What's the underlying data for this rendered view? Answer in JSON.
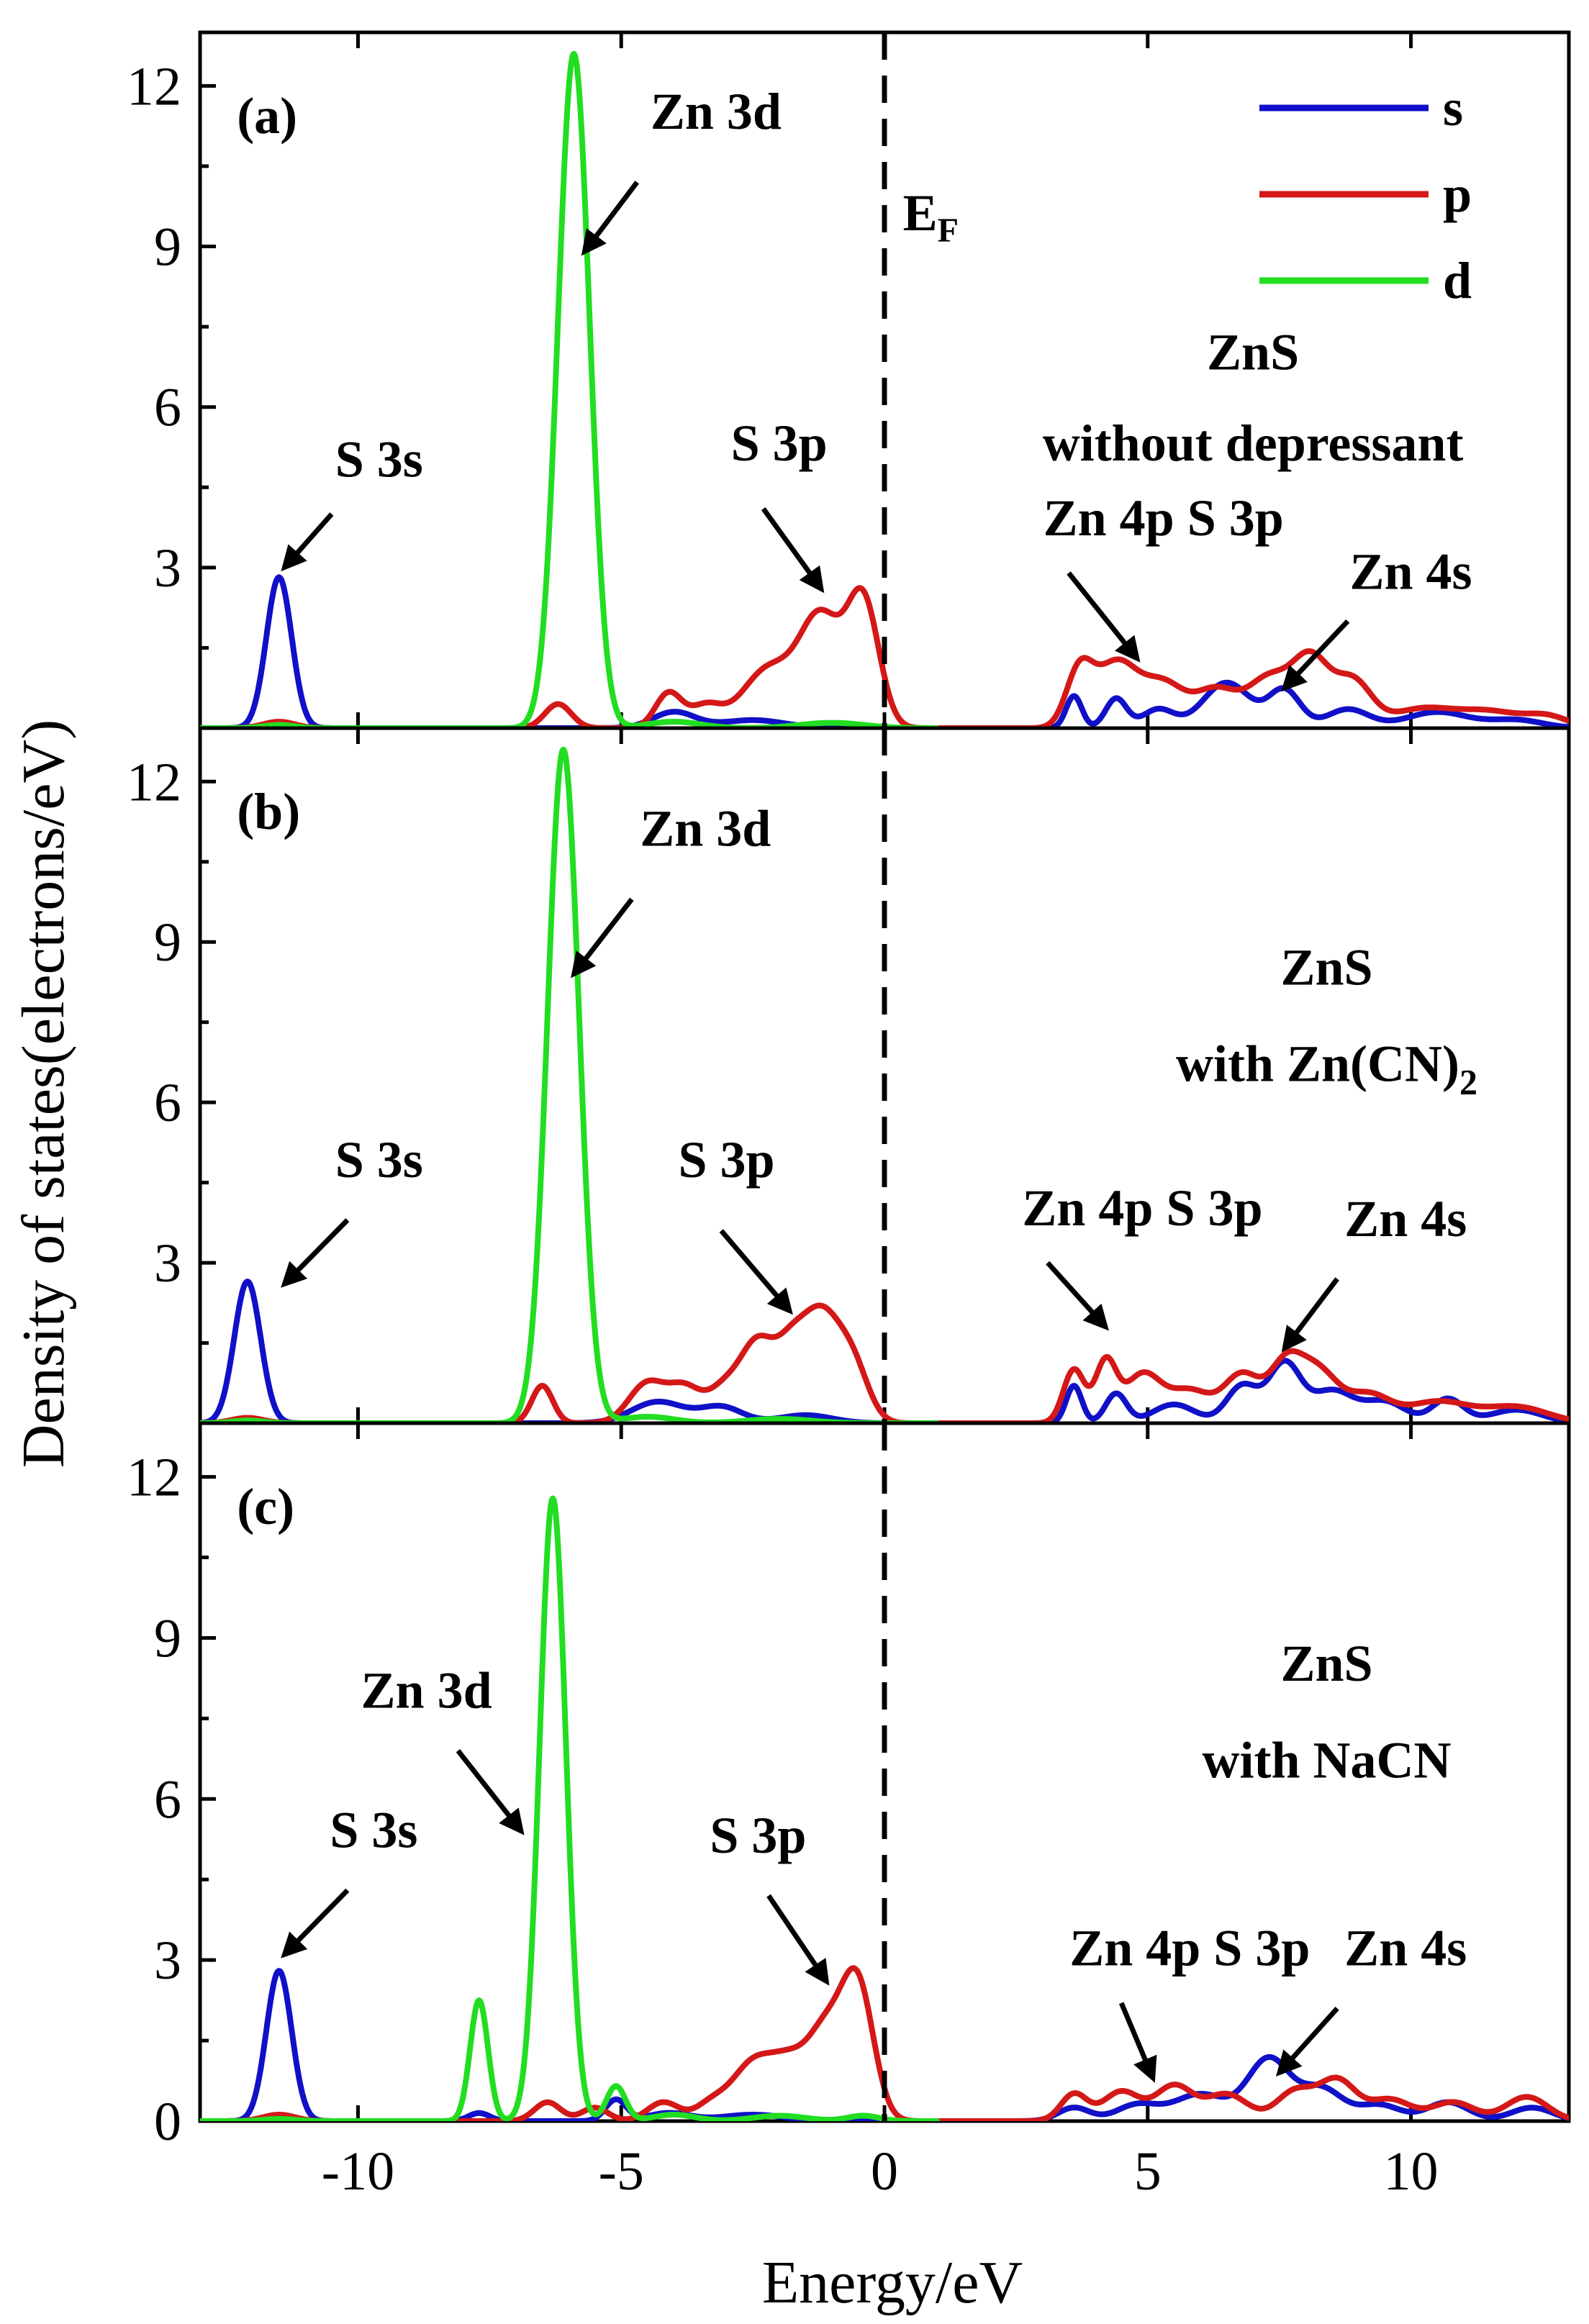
{
  "colors": {
    "s": "#1010c8",
    "p": "#d41818",
    "d": "#22dd22",
    "axis": "#000000"
  },
  "chart_data": {
    "type": "line",
    "xlabel": "Energy/eV",
    "ylabel": "Density of states(electrons/eV)",
    "xlim": [
      -13,
      13
    ],
    "ylim": [
      0,
      13
    ],
    "xticks": [
      -10,
      -5,
      0,
      5,
      10
    ],
    "yticks": [
      0,
      3,
      6,
      9,
      12
    ],
    "fermi_level": {
      "x": 0,
      "label_main": "E",
      "label_sub": "F"
    },
    "legend": [
      {
        "key": "s",
        "label": "s"
      },
      {
        "key": "p",
        "label": "p"
      },
      {
        "key": "d",
        "label": "d"
      }
    ],
    "panels": [
      {
        "id": "a",
        "label": "(a)",
        "title_line1": "ZnS",
        "title_line2": "without depressant",
        "title_line2_sub": "",
        "series": {
          "s": {
            "peaks": [
              [
                -11.5,
                2.82,
                0.24
              ],
              [
                -4.0,
                0.3,
                0.4
              ],
              [
                -2.5,
                0.15,
                0.6
              ],
              [
                3.6,
                0.6,
                0.15
              ],
              [
                4.4,
                0.55,
                0.2
              ],
              [
                5.2,
                0.35,
                0.3
              ],
              [
                6.5,
                0.85,
                0.45
              ],
              [
                7.6,
                0.7,
                0.3
              ],
              [
                8.8,
                0.35,
                0.4
              ],
              [
                10.5,
                0.3,
                0.6
              ],
              [
                12.0,
                0.15,
                0.5
              ]
            ],
            "range": [
              -13,
              13
            ]
          },
          "p": {
            "peaks": [
              [
                -11.5,
                0.12,
                0.3
              ],
              [
                -6.2,
                0.45,
                0.25
              ],
              [
                -4.1,
                0.65,
                0.25
              ],
              [
                -3.4,
                0.4,
                0.3
              ],
              [
                -2.2,
                1.1,
                0.5
              ],
              [
                -1.2,
                2.0,
                0.4
              ],
              [
                -0.4,
                2.3,
                0.3
              ],
              [
                3.7,
                1.0,
                0.25
              ],
              [
                4.4,
                1.2,
                0.4
              ],
              [
                5.3,
                0.8,
                0.4
              ],
              [
                6.3,
                0.7,
                0.4
              ],
              [
                7.3,
                0.9,
                0.4
              ],
              [
                8.1,
                1.25,
                0.35
              ],
              [
                8.9,
                0.85,
                0.35
              ],
              [
                10.2,
                0.35,
                0.6
              ],
              [
                11.5,
                0.3,
                0.6
              ],
              [
                12.6,
                0.2,
                0.4
              ]
            ],
            "range": [
              -13,
              13
            ]
          },
          "d": {
            "peaks": [
              [
                -11.5,
                0.06,
                0.3
              ],
              [
                -5.9,
                12.6,
                0.3
              ],
              [
                -4.0,
                0.12,
                0.5
              ],
              [
                -1.0,
                0.1,
                0.6
              ]
            ],
            "range": [
              -13,
              1
            ]
          }
        },
        "annotations": [
          {
            "text": "S 3s",
            "tx": -9.6,
            "ty": 4.7,
            "ax0": -10.5,
            "ay0": 4.0,
            "ax1": -11.4,
            "ay1": 3.0
          },
          {
            "text": "Zn 3d",
            "tx": -3.2,
            "ty": 11.2,
            "ax0": -4.7,
            "ay0": 10.2,
            "ax1": -5.7,
            "ay1": 8.9
          },
          {
            "text": "S 3p",
            "tx": -2.0,
            "ty": 5.0,
            "ax0": -2.3,
            "ay0": 4.1,
            "ax1": -1.2,
            "ay1": 2.6
          },
          {
            "text": "Zn 4p S 3p",
            "tx": 5.3,
            "ty": 3.6,
            "ax0": 3.5,
            "ay0": 2.9,
            "ax1": 4.8,
            "ay1": 1.3
          },
          {
            "text": "Zn 4s",
            "tx": 10.0,
            "ty": 2.6,
            "ax0": 8.8,
            "ay0": 2.0,
            "ax1": 7.6,
            "ay1": 0.75
          }
        ],
        "show_ef_label": true,
        "show_legend": true
      },
      {
        "id": "b",
        "label": "(b)",
        "title_line1": "ZnS",
        "title_line2": "with Zn(CN)",
        "title_line2_sub": "2",
        "series": {
          "s": {
            "peaks": [
              [
                -12.1,
                2.65,
                0.25
              ],
              [
                -4.3,
                0.4,
                0.5
              ],
              [
                -3.1,
                0.3,
                0.4
              ],
              [
                -1.5,
                0.15,
                0.5
              ],
              [
                3.6,
                0.7,
                0.15
              ],
              [
                4.4,
                0.55,
                0.2
              ],
              [
                5.5,
                0.35,
                0.4
              ],
              [
                6.8,
                0.7,
                0.3
              ],
              [
                7.6,
                1.1,
                0.3
              ],
              [
                8.5,
                0.6,
                0.4
              ],
              [
                9.5,
                0.4,
                0.4
              ],
              [
                10.7,
                0.45,
                0.3
              ],
              [
                12.0,
                0.25,
                0.5
              ]
            ],
            "range": [
              -13,
              13
            ]
          },
          "p": {
            "peaks": [
              [
                -12.1,
                0.1,
                0.3
              ],
              [
                -6.5,
                0.7,
                0.2
              ],
              [
                -4.5,
                0.75,
                0.35
              ],
              [
                -3.8,
                0.6,
                0.3
              ],
              [
                -3.0,
                0.7,
                0.35
              ],
              [
                -2.4,
                1.3,
                0.3
              ],
              [
                -1.8,
                1.2,
                0.3
              ],
              [
                -1.2,
                1.9,
                0.35
              ],
              [
                -0.6,
                1.0,
                0.3
              ],
              [
                3.6,
                1.0,
                0.2
              ],
              [
                4.2,
                1.1,
                0.2
              ],
              [
                4.9,
                0.9,
                0.35
              ],
              [
                5.8,
                0.6,
                0.4
              ],
              [
                6.8,
                0.9,
                0.35
              ],
              [
                7.6,
                0.9,
                0.3
              ],
              [
                8.2,
                1.0,
                0.4
              ],
              [
                9.2,
                0.5,
                0.4
              ],
              [
                10.5,
                0.4,
                0.6
              ],
              [
                12.0,
                0.3,
                0.6
              ]
            ],
            "range": [
              -13,
              13
            ]
          },
          "d": {
            "peaks": [
              [
                -12.1,
                0.05,
                0.3
              ],
              [
                -6.1,
                12.6,
                0.3
              ],
              [
                -4.5,
                0.12,
                0.5
              ],
              [
                -2.0,
                0.08,
                0.6
              ]
            ],
            "range": [
              -13,
              1
            ]
          }
        },
        "annotations": [
          {
            "text": "S 3s",
            "tx": -9.6,
            "ty": 4.6,
            "ax0": -10.2,
            "ay0": 3.8,
            "ax1": -11.4,
            "ay1": 2.6
          },
          {
            "text": "Zn 3d",
            "tx": -3.4,
            "ty": 10.8,
            "ax0": -4.8,
            "ay0": 9.8,
            "ax1": -5.9,
            "ay1": 8.4
          },
          {
            "text": "S 3p",
            "tx": -3.0,
            "ty": 4.6,
            "ax0": -3.1,
            "ay0": 3.6,
            "ax1": -1.8,
            "ay1": 2.1
          },
          {
            "text": "Zn 4p S 3p",
            "tx": 4.9,
            "ty": 3.7,
            "ax0": 3.1,
            "ay0": 3.0,
            "ax1": 4.2,
            "ay1": 1.8
          },
          {
            "text": "Zn 4s",
            "tx": 9.9,
            "ty": 3.5,
            "ax0": 8.6,
            "ay0": 2.7,
            "ax1": 7.6,
            "ay1": 1.4
          }
        ],
        "show_ef_label": false,
        "show_legend": false
      },
      {
        "id": "c",
        "label": "(c)",
        "title_line1": "ZnS",
        "title_line2": "with NaCN",
        "title_line2_sub": "",
        "series": {
          "s": {
            "peaks": [
              [
                -11.5,
                2.8,
                0.24
              ],
              [
                -7.7,
                0.15,
                0.2
              ],
              [
                -5.1,
                0.4,
                0.2
              ],
              [
                -4.1,
                0.15,
                0.4
              ],
              [
                -2.5,
                0.12,
                0.6
              ],
              [
                3.6,
                0.25,
                0.3
              ],
              [
                4.8,
                0.3,
                0.4
              ],
              [
                6.0,
                0.5,
                0.5
              ],
              [
                7.3,
                1.15,
                0.4
              ],
              [
                8.3,
                0.6,
                0.4
              ],
              [
                9.4,
                0.3,
                0.4
              ],
              [
                10.7,
                0.35,
                0.4
              ],
              [
                12.3,
                0.25,
                0.4
              ]
            ],
            "range": [
              -13,
              13
            ]
          },
          "p": {
            "peaks": [
              [
                -11.5,
                0.12,
                0.3
              ],
              [
                -6.4,
                0.35,
                0.25
              ],
              [
                -5.5,
                0.25,
                0.25
              ],
              [
                -4.2,
                0.35,
                0.3
              ],
              [
                -3.3,
                0.3,
                0.3
              ],
              [
                -2.5,
                1.05,
                0.4
              ],
              [
                -1.8,
                0.9,
                0.35
              ],
              [
                -1.1,
                1.6,
                0.35
              ],
              [
                -0.5,
                2.4,
                0.3
              ],
              [
                3.6,
                0.5,
                0.25
              ],
              [
                4.5,
                0.55,
                0.35
              ],
              [
                5.5,
                0.65,
                0.35
              ],
              [
                6.5,
                0.5,
                0.4
              ],
              [
                7.8,
                0.55,
                0.35
              ],
              [
                8.6,
                0.75,
                0.35
              ],
              [
                9.6,
                0.4,
                0.4
              ],
              [
                10.8,
                0.35,
                0.4
              ],
              [
                12.2,
                0.45,
                0.4
              ]
            ],
            "range": [
              -13,
              13
            ]
          },
          "d": {
            "peaks": [
              [
                -11.5,
                0.04,
                0.3
              ],
              [
                -7.7,
                2.25,
                0.17
              ],
              [
                -6.3,
                11.6,
                0.25
              ],
              [
                -5.1,
                0.65,
                0.18
              ],
              [
                -4.0,
                0.12,
                0.4
              ],
              [
                -2.0,
                0.1,
                0.5
              ],
              [
                -0.4,
                0.1,
                0.3
              ]
            ],
            "range": [
              -13,
              1
            ]
          }
        },
        "annotations": [
          {
            "text": "S 3s",
            "tx": -9.7,
            "ty": 5.1,
            "ax0": -10.2,
            "ay0": 4.3,
            "ax1": -11.4,
            "ay1": 3.1
          },
          {
            "text": "Zn 3d",
            "tx": -8.7,
            "ty": 7.7,
            "ax0": -8.1,
            "ay0": 6.9,
            "ax1": -6.9,
            "ay1": 5.4
          },
          {
            "text": "S 3p",
            "tx": -2.4,
            "ty": 5.0,
            "ax0": -2.2,
            "ay0": 4.2,
            "ax1": -1.1,
            "ay1": 2.6
          },
          {
            "text": "Zn 4p S 3p",
            "tx": 5.8,
            "ty": 2.9,
            "ax0": 4.5,
            "ay0": 2.2,
            "ax1": 5.1,
            "ay1": 0.8
          },
          {
            "text": "Zn 4s",
            "tx": 9.9,
            "ty": 2.9,
            "ax0": 8.6,
            "ay0": 2.1,
            "ax1": 7.5,
            "ay1": 0.9
          }
        ],
        "show_ef_label": false,
        "show_legend": false
      }
    ]
  }
}
